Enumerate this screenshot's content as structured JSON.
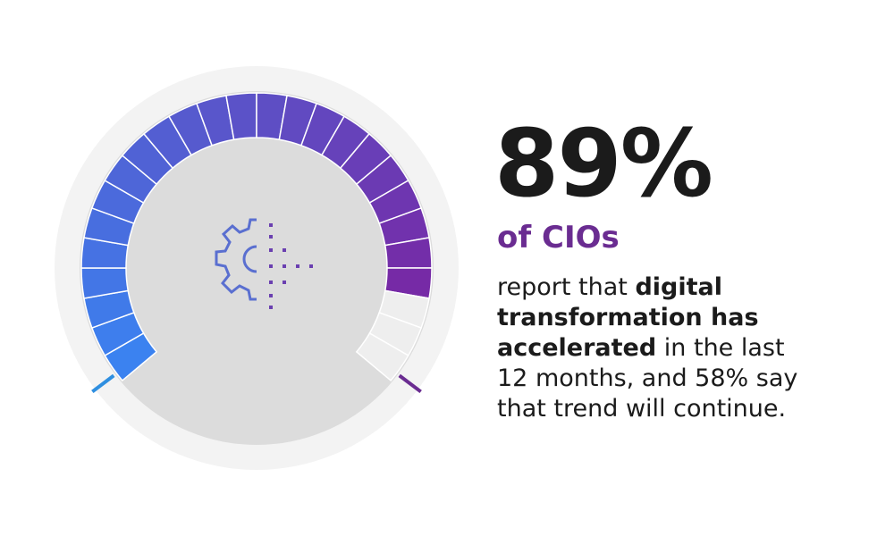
{
  "headline": "89%",
  "subheadline": "of CIOs",
  "body": {
    "lines": [
      [
        {
          "text": "report that ",
          "bold": false
        },
        {
          "text": "digital",
          "bold": true
        }
      ],
      [
        {
          "text": "transformation has",
          "bold": true
        }
      ],
      [
        {
          "text": "accelerated",
          "bold": true
        },
        {
          "text": " in the last",
          "bold": false
        }
      ],
      [
        {
          "text": "12 months, and 58% say",
          "bold": false
        }
      ],
      [
        {
          "text": "that trend will continue.",
          "bold": false
        }
      ]
    ]
  }
}
